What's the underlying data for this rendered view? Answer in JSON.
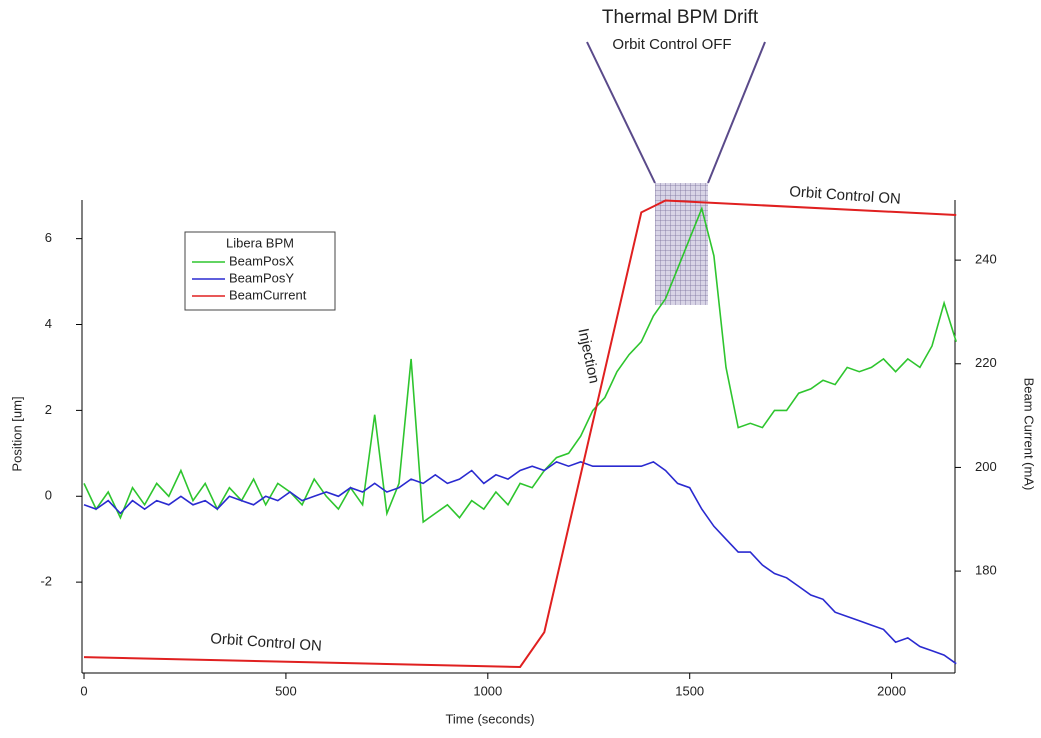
{
  "chart_data": {
    "type": "line",
    "x_label": "Time (seconds)",
    "y_label": "Position [um]",
    "y2_label": "Beam Current (mA)",
    "legend_title": "Libera BPM",
    "annotations": [
      "Thermal BPM Drift",
      "Orbit Control OFF",
      "Orbit Control ON",
      "Injection",
      "Orbit Control ON"
    ],
    "xlim": [
      -5,
      2157
    ],
    "ylim": [
      -4,
      6.9
    ],
    "y2lim": [
      161.3,
      251.6
    ],
    "xticks": [
      0,
      500,
      1000,
      1500,
      2000
    ],
    "yticks": [
      -2,
      0,
      2,
      4,
      6
    ],
    "y2ticks": [
      180,
      200,
      220,
      240
    ],
    "x": [
      0,
      30,
      60,
      90,
      120,
      150,
      180,
      210,
      240,
      270,
      300,
      330,
      360,
      390,
      420,
      450,
      480,
      510,
      540,
      570,
      600,
      630,
      660,
      690,
      720,
      750,
      780,
      810,
      840,
      870,
      900,
      930,
      960,
      990,
      1020,
      1050,
      1080,
      1110,
      1140,
      1170,
      1200,
      1230,
      1260,
      1290,
      1320,
      1350,
      1380,
      1410,
      1440,
      1470,
      1500,
      1530,
      1560,
      1590,
      1620,
      1650,
      1680,
      1710,
      1740,
      1770,
      1800,
      1830,
      1860,
      1890,
      1920,
      1950,
      1980,
      2010,
      2040,
      2070,
      2100,
      2130,
      2160
    ],
    "series": [
      {
        "name": "BeamPosX",
        "color": "#2ec52e",
        "values": [
          0.3,
          -0.3,
          0.1,
          -0.5,
          0.2,
          -0.2,
          0.3,
          0.0,
          0.6,
          -0.1,
          0.3,
          -0.3,
          0.2,
          -0.1,
          0.4,
          -0.2,
          0.3,
          0.1,
          -0.2,
          0.4,
          0.0,
          -0.3,
          0.2,
          -0.2,
          1.9,
          -0.4,
          0.3,
          3.2,
          -0.6,
          -0.4,
          -0.2,
          -0.5,
          -0.1,
          -0.3,
          0.1,
          -0.2,
          0.3,
          0.2,
          0.6,
          0.9,
          1.0,
          1.4,
          2.0,
          2.3,
          2.9,
          3.3,
          3.6,
          4.2,
          4.6,
          5.3,
          6.0,
          6.7,
          5.6,
          3.0,
          1.6,
          1.7,
          1.6,
          2.0,
          2.0,
          2.4,
          2.5,
          2.7,
          2.6,
          3.0,
          2.9,
          3.0,
          3.2,
          2.9,
          3.2,
          3.0,
          3.5,
          4.5,
          3.6
        ]
      },
      {
        "name": "BeamPosY",
        "color": "#2a2ad0",
        "values": [
          -0.2,
          -0.3,
          -0.1,
          -0.4,
          -0.1,
          -0.3,
          -0.1,
          -0.2,
          0.0,
          -0.2,
          -0.1,
          -0.3,
          0.0,
          -0.1,
          -0.2,
          0.0,
          -0.1,
          0.1,
          -0.1,
          0.0,
          0.1,
          0.0,
          0.2,
          0.1,
          0.3,
          0.1,
          0.2,
          0.4,
          0.3,
          0.5,
          0.3,
          0.4,
          0.6,
          0.3,
          0.5,
          0.4,
          0.6,
          0.7,
          0.6,
          0.8,
          0.7,
          0.8,
          0.7,
          0.7,
          0.7,
          0.7,
          0.7,
          0.8,
          0.6,
          0.3,
          0.2,
          -0.3,
          -0.7,
          -1.0,
          -1.3,
          -1.3,
          -1.6,
          -1.8,
          -1.9,
          -2.1,
          -2.3,
          -2.4,
          -2.7,
          -2.8,
          -2.9,
          -3.0,
          -3.1,
          -3.4,
          -3.3,
          -3.5,
          -3.6,
          -3.7,
          -3.9
        ]
      },
      {
        "name": "BeamCurrent",
        "color": "#e02020",
        "axis": "y2",
        "x": [
          0,
          1080,
          1140,
          1380,
          1440,
          2160
        ],
        "values": [
          163.4,
          161.5,
          168.2,
          249.2,
          251.5,
          248.7
        ]
      }
    ]
  }
}
